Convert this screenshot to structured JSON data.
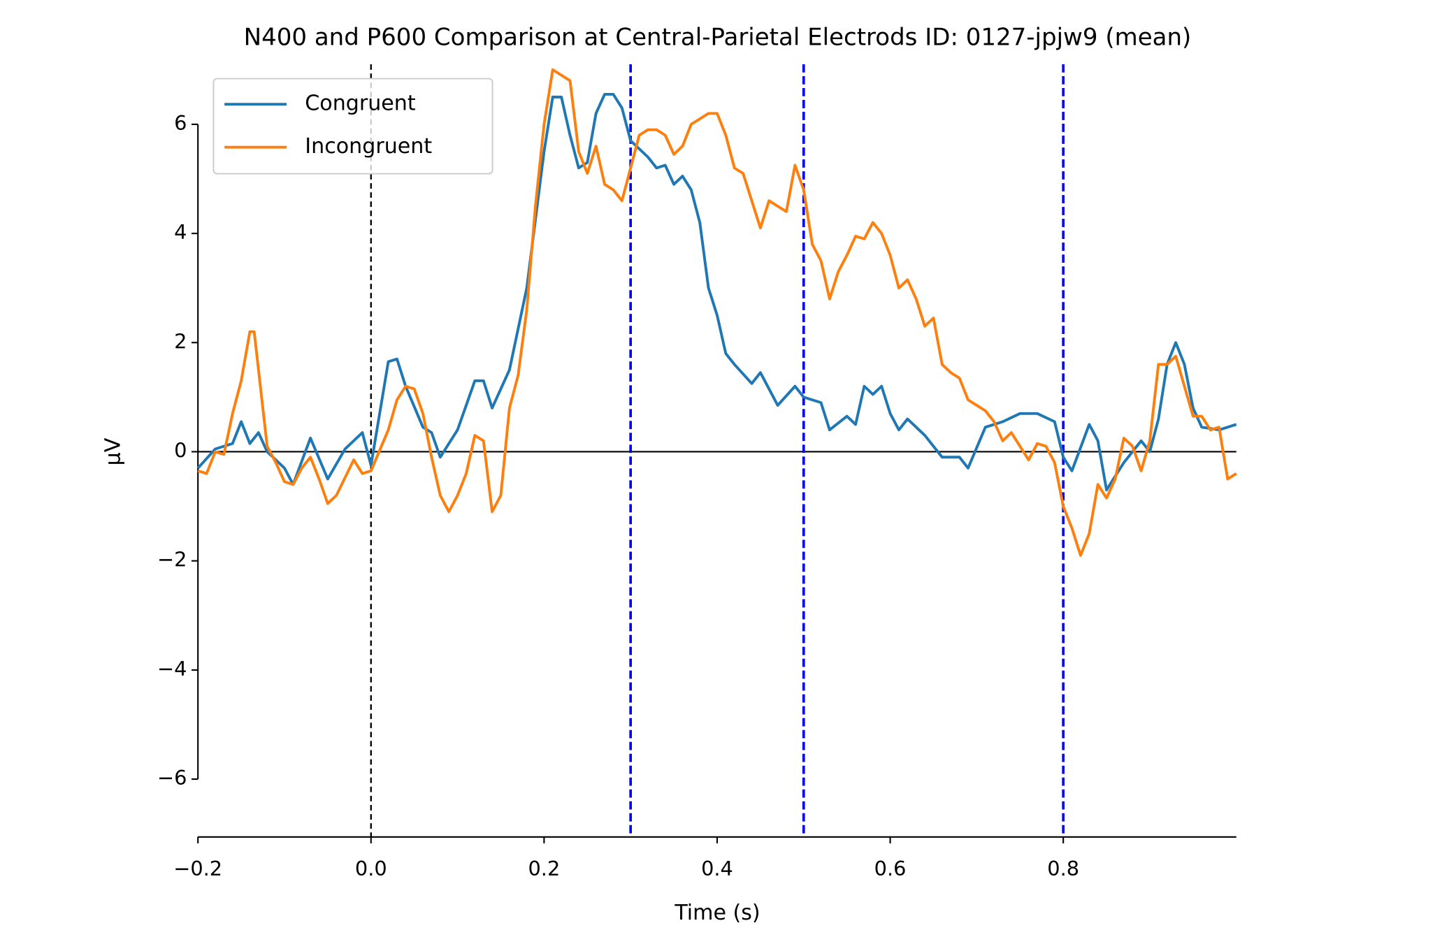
{
  "chart_data": {
    "type": "line",
    "title": "N400 and P600 Comparison at Central-Parietal Electrods ID: 0127-jpjw9 (mean)",
    "x_label": "Time (s)",
    "y_label": "μV",
    "xlim": [
      -0.2,
      1.0
    ],
    "ylim": [
      -7.06,
      7.1
    ],
    "xticks": [
      {
        "value": -0.2,
        "label": "−0.2"
      },
      {
        "value": 0,
        "label": "0.0"
      },
      0.2,
      0.4,
      0.6,
      0.8
    ],
    "yticks": [
      {
        "value": -6,
        "label": "−6"
      },
      {
        "value": -4,
        "label": "−4"
      },
      {
        "value": -2,
        "label": "−2"
      },
      0,
      2,
      4,
      6
    ],
    "legend": "upper left",
    "hlines": [
      {
        "y": 0,
        "color": "#000000",
        "style": "solid"
      }
    ],
    "vlines": [
      {
        "x": 0,
        "color": "#000000",
        "style": "dashed"
      },
      {
        "x": 0.3,
        "color": "#0000ff",
        "style": "dashed"
      },
      {
        "x": 0.5,
        "color": "#0000ff",
        "style": "dashed"
      },
      {
        "x": 0.8,
        "color": "#0000ff",
        "style": "dashed"
      }
    ],
    "series": [
      {
        "name": "Congruent",
        "color": "#1f77b4",
        "x": [
          -0.2,
          -0.18,
          -0.16,
          -0.15,
          -0.14,
          -0.13,
          -0.12,
          -0.1,
          -0.09,
          -0.07,
          -0.05,
          -0.03,
          -0.01,
          0,
          0.02,
          0.03,
          0.04,
          0.06,
          0.07,
          0.08,
          0.1,
          0.12,
          0.13,
          0.14,
          0.16,
          0.18,
          0.2,
          0.21,
          0.22,
          0.23,
          0.24,
          0.25,
          0.26,
          0.27,
          0.28,
          0.29,
          0.3,
          0.32,
          0.33,
          0.34,
          0.35,
          0.36,
          0.37,
          0.38,
          0.39,
          0.4,
          0.41,
          0.42,
          0.44,
          0.45,
          0.47,
          0.49,
          0.5,
          0.52,
          0.53,
          0.55,
          0.56,
          0.57,
          0.58,
          0.59,
          0.6,
          0.61,
          0.62,
          0.64,
          0.66,
          0.68,
          0.69,
          0.71,
          0.73,
          0.75,
          0.77,
          0.79,
          0.8,
          0.81,
          0.83,
          0.84,
          0.85,
          0.87,
          0.89,
          0.9,
          0.91,
          0.92,
          0.93,
          0.94,
          0.95,
          0.96,
          0.98,
          1.0
        ],
        "values": [
          -0.3,
          0.05,
          0.15,
          0.55,
          0.15,
          0.35,
          0.0,
          -0.3,
          -0.6,
          0.25,
          -0.5,
          0.05,
          0.35,
          -0.25,
          1.65,
          1.7,
          1.2,
          0.45,
          0.35,
          -0.1,
          0.4,
          1.3,
          1.3,
          0.8,
          1.5,
          3.0,
          5.5,
          6.5,
          6.5,
          5.8,
          5.2,
          5.3,
          6.2,
          6.55,
          6.55,
          6.3,
          5.7,
          5.4,
          5.2,
          5.25,
          4.9,
          5.05,
          4.8,
          4.2,
          3.0,
          2.5,
          1.8,
          1.6,
          1.25,
          1.45,
          0.85,
          1.2,
          1.0,
          0.9,
          0.4,
          0.65,
          0.5,
          1.2,
          1.05,
          1.2,
          0.7,
          0.4,
          0.6,
          0.3,
          -0.1,
          -0.1,
          -0.3,
          0.45,
          0.55,
          0.7,
          0.7,
          0.55,
          -0.1,
          -0.35,
          0.5,
          0.2,
          -0.7,
          -0.2,
          0.2,
          0.0,
          0.6,
          1.6,
          2.0,
          1.6,
          0.8,
          0.45,
          0.4,
          0.5
        ]
      },
      {
        "name": "Incongruent",
        "color": "#ff7f0e",
        "x": [
          -0.2,
          -0.19,
          -0.18,
          -0.17,
          -0.16,
          -0.15,
          -0.14,
          -0.135,
          -0.13,
          -0.12,
          -0.11,
          -0.1,
          -0.09,
          -0.08,
          -0.07,
          -0.06,
          -0.05,
          -0.04,
          -0.02,
          -0.01,
          0,
          0.02,
          0.03,
          0.04,
          0.05,
          0.06,
          0.07,
          0.08,
          0.09,
          0.1,
          0.11,
          0.12,
          0.13,
          0.14,
          0.15,
          0.16,
          0.17,
          0.18,
          0.19,
          0.2,
          0.21,
          0.22,
          0.23,
          0.24,
          0.25,
          0.26,
          0.27,
          0.28,
          0.29,
          0.3,
          0.31,
          0.32,
          0.33,
          0.34,
          0.35,
          0.36,
          0.37,
          0.38,
          0.39,
          0.4,
          0.41,
          0.42,
          0.43,
          0.44,
          0.45,
          0.46,
          0.47,
          0.48,
          0.49,
          0.5,
          0.51,
          0.52,
          0.53,
          0.54,
          0.55,
          0.56,
          0.57,
          0.58,
          0.59,
          0.6,
          0.61,
          0.62,
          0.63,
          0.64,
          0.65,
          0.66,
          0.67,
          0.68,
          0.69,
          0.7,
          0.71,
          0.72,
          0.73,
          0.74,
          0.75,
          0.76,
          0.77,
          0.78,
          0.79,
          0.8,
          0.81,
          0.82,
          0.83,
          0.84,
          0.85,
          0.86,
          0.87,
          0.88,
          0.89,
          0.9,
          0.91,
          0.92,
          0.93,
          0.94,
          0.95,
          0.96,
          0.97,
          0.98,
          0.99,
          1.0
        ],
        "values": [
          -0.35,
          -0.4,
          0.0,
          -0.05,
          0.7,
          1.3,
          2.2,
          2.2,
          1.5,
          0.1,
          -0.2,
          -0.55,
          -0.6,
          -0.3,
          -0.1,
          -0.5,
          -0.95,
          -0.8,
          -0.15,
          -0.4,
          -0.35,
          0.4,
          0.95,
          1.2,
          1.15,
          0.7,
          -0.1,
          -0.8,
          -1.1,
          -0.8,
          -0.4,
          0.3,
          0.2,
          -1.1,
          -0.8,
          0.8,
          1.4,
          2.6,
          4.5,
          6.0,
          7.0,
          6.9,
          6.8,
          5.5,
          5.1,
          5.6,
          4.9,
          4.8,
          4.6,
          5.2,
          5.8,
          5.9,
          5.9,
          5.8,
          5.45,
          5.6,
          6.0,
          6.1,
          6.2,
          6.2,
          5.8,
          5.2,
          5.1,
          4.6,
          4.1,
          4.6,
          4.5,
          4.4,
          5.25,
          4.8,
          3.8,
          3.5,
          2.8,
          3.3,
          3.6,
          3.95,
          3.9,
          4.2,
          4.0,
          3.6,
          3.0,
          3.15,
          2.8,
          2.3,
          2.45,
          1.6,
          1.45,
          1.35,
          0.95,
          0.85,
          0.75,
          0.55,
          0.2,
          0.35,
          0.1,
          -0.15,
          0.15,
          0.1,
          -0.2,
          -1.0,
          -1.4,
          -1.9,
          -1.5,
          -0.6,
          -0.85,
          -0.5,
          0.25,
          0.1,
          -0.35,
          0.2,
          1.6,
          1.6,
          1.75,
          1.2,
          0.65,
          0.65,
          0.4,
          0.45,
          -0.5,
          -0.4
        ]
      }
    ]
  }
}
